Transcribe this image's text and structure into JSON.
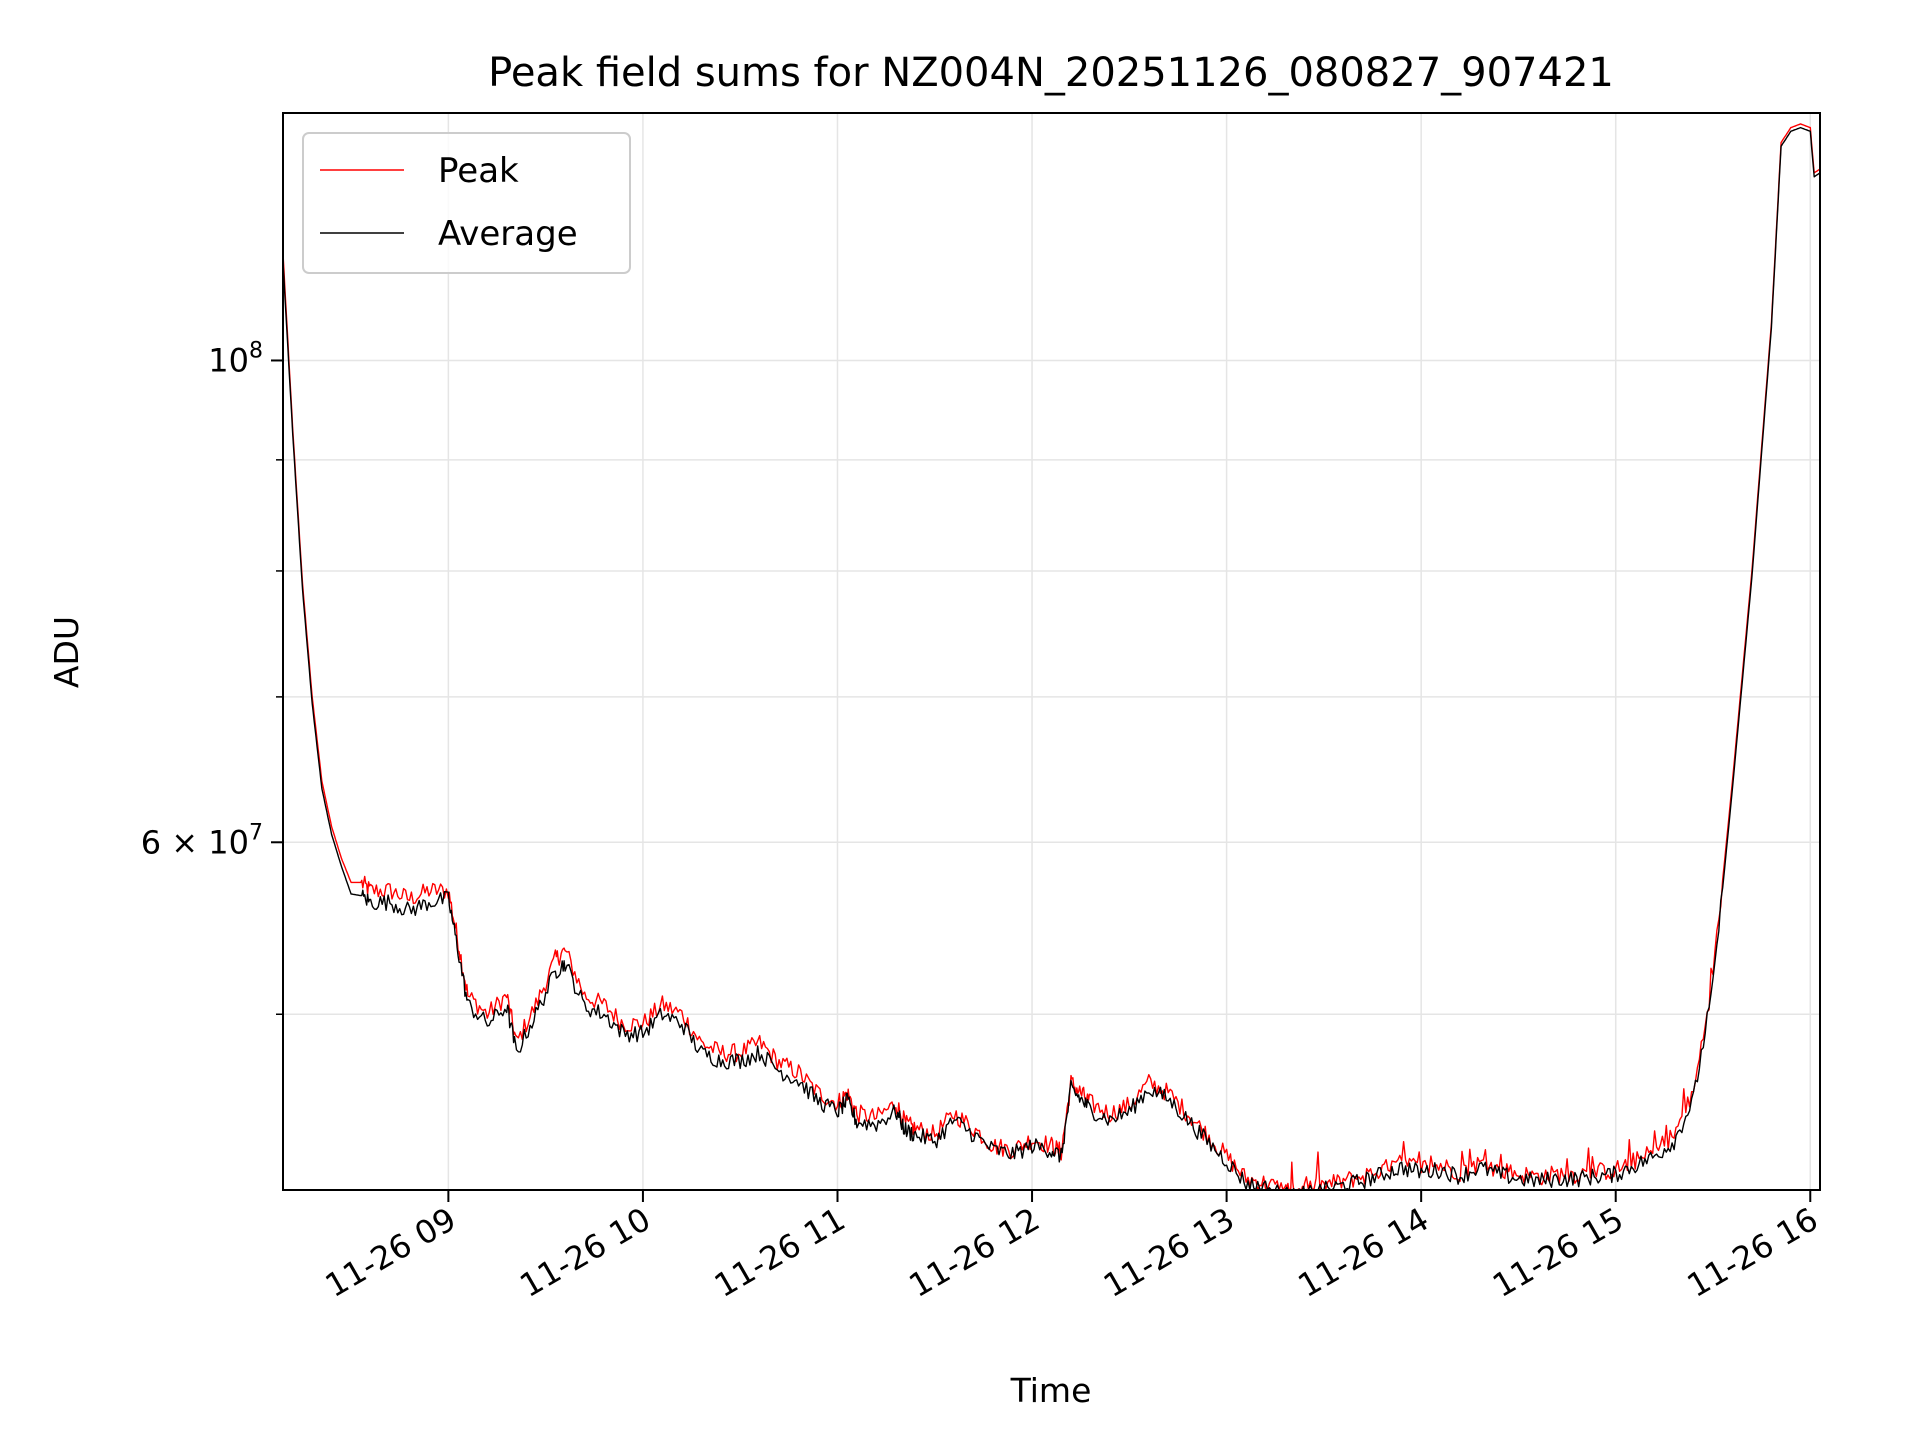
{
  "chart_data": {
    "type": "line",
    "title": "Peak field sums for NZ004N_20251126_080827_907421",
    "xlabel": "Time",
    "ylabel": "ADU",
    "yscale": "log",
    "grid": true,
    "legend_position": "top-left",
    "x_range_hours": [
      8.15,
      16.05
    ],
    "ylim": [
      41500000,
      130000000
    ],
    "x_ticks": [
      {
        "hour": 9,
        "label": "11-26 09"
      },
      {
        "hour": 10,
        "label": "11-26 10"
      },
      {
        "hour": 11,
        "label": "11-26 11"
      },
      {
        "hour": 12,
        "label": "11-26 12"
      },
      {
        "hour": 13,
        "label": "11-26 13"
      },
      {
        "hour": 14,
        "label": "11-26 14"
      },
      {
        "hour": 15,
        "label": "11-26 15"
      },
      {
        "hour": 16,
        "label": "11-26 16"
      }
    ],
    "y_major_ticks": [
      {
        "value": 100000000,
        "base": "10",
        "exp": "8",
        "mant": ""
      },
      {
        "value": 60000000,
        "base": "10",
        "exp": "7",
        "mant": "6"
      }
    ],
    "y_minor_ticks": [
      50000000,
      70000000,
      80000000,
      90000000
    ],
    "y_tick_times": "×",
    "series": [
      {
        "name": "Peak",
        "color": "#ff0000",
        "x_hours": [
          8.15,
          8.2,
          8.25,
          8.3,
          8.35,
          8.4,
          8.45,
          8.5,
          8.55,
          8.6,
          8.7,
          8.8,
          8.9,
          9.0,
          9.05,
          9.1,
          9.2,
          9.3,
          9.35,
          9.45,
          9.55,
          9.6,
          9.7,
          9.8,
          9.9,
          10.0,
          10.1,
          10.2,
          10.3,
          10.4,
          10.5,
          10.6,
          10.7,
          10.8,
          10.9,
          11.0,
          11.05,
          11.1,
          11.2,
          11.3,
          11.35,
          11.4,
          11.5,
          11.6,
          11.7,
          11.8,
          11.9,
          12.0,
          12.1,
          12.15,
          12.2,
          12.25,
          12.3,
          12.4,
          12.5,
          12.6,
          12.7,
          12.8,
          12.9,
          13.0,
          13.1,
          13.2,
          13.3,
          13.35,
          13.4,
          13.5,
          13.6,
          13.7,
          13.8,
          13.9,
          14.0,
          14.1,
          14.2,
          14.3,
          14.4,
          14.5,
          14.6,
          14.7,
          14.8,
          14.9,
          15.0,
          15.1,
          15.2,
          15.3,
          15.4,
          15.5,
          15.6,
          15.7,
          15.8,
          15.85,
          15.9,
          15.95,
          16.0,
          16.02,
          16.05
        ],
        "values": [
          112000000,
          93000000,
          79000000,
          70000000,
          64000000,
          61000000,
          59000000,
          57500000,
          57500000,
          57000000,
          57000000,
          56500000,
          57000000,
          57000000,
          54000000,
          51000000,
          50000000,
          51000000,
          48500000,
          50500000,
          53000000,
          53500000,
          51000000,
          50500000,
          49500000,
          49500000,
          50500000,
          50000000,
          48500000,
          48000000,
          48000000,
          48500000,
          47500000,
          47000000,
          46000000,
          45500000,
          46000000,
          45000000,
          44800000,
          45500000,
          44500000,
          44300000,
          44000000,
          45000000,
          44300000,
          43500000,
          43300000,
          43800000,
          43500000,
          43200000,
          46500000,
          46000000,
          45500000,
          45000000,
          45400000,
          46500000,
          46000000,
          45000000,
          44000000,
          43000000,
          42000000,
          41800000,
          41500000,
          41400000,
          41500000,
          41700000,
          41900000,
          42100000,
          42400000,
          42700000,
          42500000,
          42600000,
          42300000,
          42700000,
          42400000,
          42200000,
          42100000,
          42200000,
          42200000,
          42300000,
          42400000,
          42800000,
          43200000,
          44000000,
          46000000,
          52000000,
          64000000,
          80000000,
          104000000,
          126000000,
          128000000,
          128500000,
          128000000,
          122000000,
          122500000
        ]
      },
      {
        "name": "Average",
        "color": "#000000",
        "x_hours": [
          8.15,
          8.2,
          8.25,
          8.3,
          8.35,
          8.4,
          8.45,
          8.5,
          8.55,
          8.6,
          8.7,
          8.8,
          8.9,
          9.0,
          9.05,
          9.1,
          9.2,
          9.3,
          9.35,
          9.45,
          9.55,
          9.6,
          9.7,
          9.8,
          9.9,
          10.0,
          10.1,
          10.2,
          10.3,
          10.4,
          10.5,
          10.6,
          10.7,
          10.8,
          10.9,
          11.0,
          11.05,
          11.1,
          11.2,
          11.3,
          11.35,
          11.4,
          11.5,
          11.6,
          11.7,
          11.8,
          11.9,
          12.0,
          12.1,
          12.15,
          12.2,
          12.25,
          12.3,
          12.4,
          12.5,
          12.6,
          12.7,
          12.8,
          12.9,
          13.0,
          13.1,
          13.2,
          13.3,
          13.35,
          13.4,
          13.5,
          13.6,
          13.7,
          13.8,
          13.9,
          14.0,
          14.1,
          14.2,
          14.3,
          14.4,
          14.5,
          14.6,
          14.7,
          14.8,
          14.9,
          15.0,
          15.1,
          15.2,
          15.3,
          15.4,
          15.5,
          15.6,
          15.7,
          15.8,
          15.85,
          15.9,
          15.95,
          16.0,
          16.02,
          16.05
        ],
        "values": [
          111000000,
          92500000,
          78500000,
          69500000,
          63500000,
          60500000,
          58500000,
          56800000,
          56700000,
          56300000,
          56300000,
          55800000,
          56300000,
          56500000,
          53500000,
          50500000,
          49500000,
          50400000,
          48000000,
          50000000,
          52300000,
          52800000,
          50400000,
          50000000,
          49000000,
          49000000,
          50000000,
          49500000,
          48000000,
          47600000,
          47600000,
          48000000,
          47100000,
          46600000,
          45600000,
          45100000,
          45600000,
          44600000,
          44500000,
          45100000,
          44200000,
          44000000,
          43700000,
          44700000,
          44000000,
          43300000,
          43100000,
          43500000,
          43300000,
          43000000,
          46200000,
          45700000,
          45200000,
          44700000,
          45100000,
          46200000,
          45700000,
          44700000,
          43700000,
          42800000,
          41800000,
          41600000,
          41300000,
          41200000,
          41300000,
          41500000,
          41700000,
          41900000,
          42200000,
          42500000,
          42300000,
          42400000,
          42100000,
          42500000,
          42200000,
          42000000,
          41900000,
          42000000,
          42000000,
          42100000,
          42200000,
          42600000,
          43000000,
          43700000,
          45700000,
          51500000,
          63500000,
          79500000,
          103500000,
          125500000,
          127500000,
          128000000,
          127500000,
          121500000,
          122000000
        ]
      }
    ]
  }
}
